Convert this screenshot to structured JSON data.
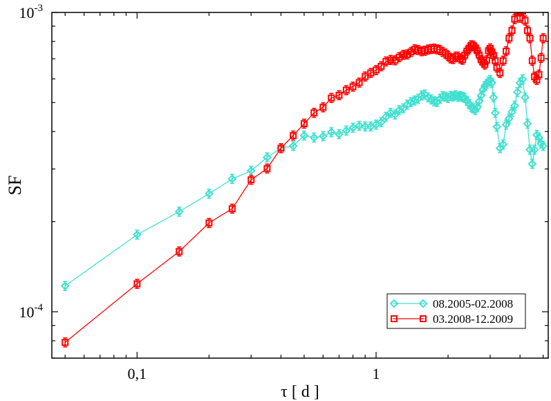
{
  "chart_data": {
    "type": "line",
    "title": "",
    "xlabel": "τ  [ d ]",
    "ylabel": "SF",
    "xscale": "log",
    "yscale": "log",
    "xlim": [
      0.044,
      5.25
    ],
    "ylim": [
      7e-05,
      0.001
    ],
    "x_ticks": [
      {
        "value": 0.1,
        "label": "0,1"
      },
      {
        "value": 1,
        "label": "1"
      }
    ],
    "y_ticks": [
      {
        "value": 0.0001,
        "base": "10",
        "exp": "-4"
      },
      {
        "value": 0.001,
        "base": "10",
        "exp": "-3"
      }
    ],
    "legend_position": "bottom-right",
    "series": [
      {
        "name": "08.2005-02.2008",
        "color": "#40e0d0",
        "marker": "diamond",
        "x": [
          0.05,
          0.1,
          0.15,
          0.2,
          0.25,
          0.3,
          0.35,
          0.4,
          0.45,
          0.5,
          0.55,
          0.6,
          0.65,
          0.7,
          0.75,
          0.8,
          0.85,
          0.9,
          0.95,
          1.0,
          1.05,
          1.1,
          1.15,
          1.2,
          1.25,
          1.3,
          1.35,
          1.4,
          1.45,
          1.5,
          1.55,
          1.6,
          1.65,
          1.7,
          1.75,
          1.8,
          1.85,
          1.9,
          1.95,
          2.0,
          2.05,
          2.1,
          2.15,
          2.2,
          2.25,
          2.3,
          2.35,
          2.4,
          2.45,
          2.5,
          2.55,
          2.6,
          2.65,
          2.7,
          2.75,
          2.8,
          2.85,
          2.9,
          2.95,
          3.0,
          3.05,
          3.1,
          3.15,
          3.2,
          3.3,
          3.4,
          3.5,
          3.6,
          3.7,
          3.8,
          3.9,
          4.0,
          4.1,
          4.2,
          4.3,
          4.4,
          4.5,
          4.6,
          4.7,
          4.8,
          4.9,
          5.0
        ],
        "y": [
          0.000122,
          0.000181,
          0.000216,
          0.000248,
          0.000278,
          0.000296,
          0.000328,
          0.000352,
          0.000358,
          0.000388,
          0.000382,
          0.000386,
          0.000398,
          0.000392,
          0.000403,
          0.000412,
          0.000418,
          0.000416,
          0.000416,
          0.000422,
          0.00043,
          0.000448,
          0.000462,
          0.000456,
          0.000472,
          0.000478,
          0.000492,
          0.000502,
          0.000508,
          0.000515,
          0.000528,
          0.000532,
          0.00052,
          0.000512,
          0.000505,
          0.000502,
          0.000515,
          0.000525,
          0.000523,
          0.000518,
          0.000526,
          0.000524,
          0.000529,
          0.000523,
          0.000526,
          0.000522,
          0.000518,
          0.000506,
          0.000495,
          0.000482,
          0.000478,
          0.000472,
          0.000482,
          0.000505,
          0.000528,
          0.000552,
          0.000568,
          0.000578,
          0.000588,
          0.000595,
          0.000582,
          0.00052,
          0.000462,
          0.000415,
          0.000352,
          0.000362,
          0.000422,
          0.000442,
          0.000465,
          0.000488,
          0.000542,
          0.000582,
          0.000598,
          0.00052,
          0.000425,
          0.000348,
          0.000312,
          0.000348,
          0.00039,
          0.000382,
          0.000365,
          0.000358
        ]
      },
      {
        "name": "03.2008-12.2009",
        "color": "#ff0000",
        "marker": "square",
        "x": [
          0.05,
          0.1,
          0.15,
          0.2,
          0.25,
          0.3,
          0.35,
          0.4,
          0.45,
          0.5,
          0.55,
          0.6,
          0.65,
          0.7,
          0.75,
          0.8,
          0.85,
          0.9,
          0.95,
          1.0,
          1.05,
          1.1,
          1.15,
          1.2,
          1.25,
          1.3,
          1.35,
          1.4,
          1.45,
          1.5,
          1.55,
          1.6,
          1.65,
          1.7,
          1.75,
          1.8,
          1.85,
          1.9,
          1.95,
          2.0,
          2.05,
          2.1,
          2.15,
          2.2,
          2.25,
          2.3,
          2.35,
          2.4,
          2.45,
          2.5,
          2.55,
          2.6,
          2.65,
          2.7,
          2.75,
          2.8,
          2.85,
          2.9,
          2.95,
          3.0,
          3.05,
          3.1,
          3.15,
          3.2,
          3.3,
          3.4,
          3.5,
          3.6,
          3.7,
          3.8,
          3.9,
          4.0,
          4.1,
          4.2,
          4.3,
          4.4,
          4.5,
          4.6,
          4.7,
          4.8,
          4.9,
          5.0
        ],
        "y": [
          7.9e-05,
          0.000124,
          0.000159,
          0.000198,
          0.000221,
          0.000276,
          0.000301,
          0.000352,
          0.000388,
          0.000425,
          0.000462,
          0.000482,
          0.000518,
          0.000529,
          0.00055,
          0.000565,
          0.000583,
          0.000611,
          0.000628,
          0.000642,
          0.000661,
          0.000686,
          0.000694,
          0.000692,
          0.000709,
          0.000722,
          0.000724,
          0.000738,
          0.000753,
          0.000749,
          0.000742,
          0.000745,
          0.000752,
          0.000755,
          0.000757,
          0.000753,
          0.000749,
          0.000738,
          0.000729,
          0.000716,
          0.000702,
          0.000699,
          0.000712,
          0.000712,
          0.000701,
          0.000695,
          0.00072,
          0.000743,
          0.00076,
          0.000777,
          0.000775,
          0.000762,
          0.000745,
          0.00072,
          0.000695,
          0.000682,
          0.00067,
          0.000692,
          0.000745,
          0.000758,
          0.000739,
          0.000718,
          0.00069,
          0.000655,
          0.000628,
          0.00069,
          0.000742,
          0.00082,
          0.00087,
          0.00095,
          0.00101,
          0.00096,
          0.00101,
          0.00094,
          0.00087,
          0.00082,
          0.00069,
          0.00061,
          0.000595,
          0.00062,
          0.000705,
          0.00082
        ]
      }
    ]
  }
}
